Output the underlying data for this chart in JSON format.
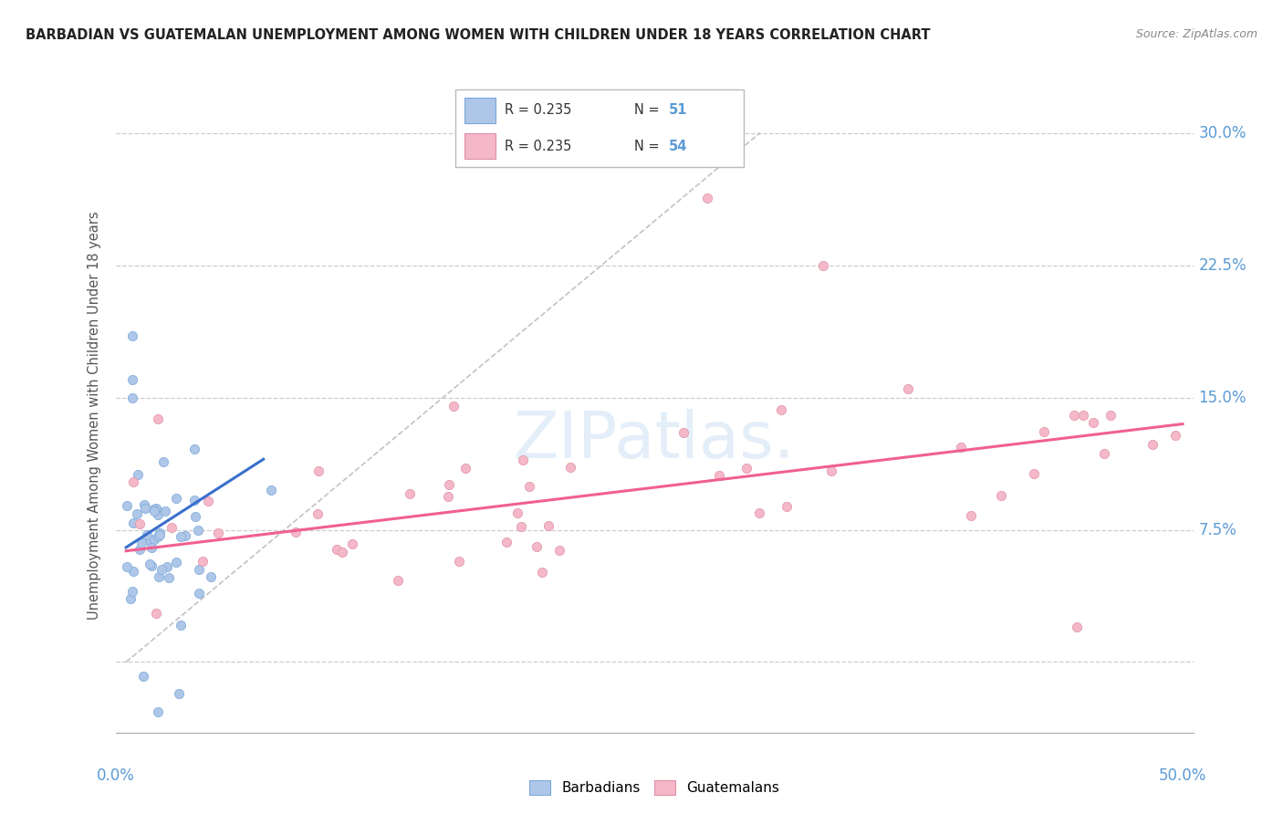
{
  "title": "BARBADIAN VS GUATEMALAN UNEMPLOYMENT AMONG WOMEN WITH CHILDREN UNDER 18 YEARS CORRELATION CHART",
  "source": "Source: ZipAtlas.com",
  "ylabel": "Unemployment Among Women with Children Under 18 years",
  "barbadian_color": "#aec6e8",
  "barbadian_edge": "#7ba8d8",
  "guatemalan_color": "#f4b8c8",
  "guatemalan_edge": "#e090a8",
  "barbadian_trend_color": "#3a6fcc",
  "guatemalan_trend_color": "#f06090",
  "diagonal_color": "#b8b8b8",
  "ytick_vals": [
    0.075,
    0.15,
    0.225,
    0.3
  ],
  "ytick_labels": [
    "7.5%",
    "15.0%",
    "22.5%",
    "30.0%"
  ],
  "xlim": [
    -0.005,
    0.505
  ],
  "ylim": [
    -0.04,
    0.32
  ],
  "axis_label_color": "#5b9bd5",
  "grid_color": "#cccccc",
  "watermark_color": "#cce0f5",
  "barb_trend_x": [
    0.0,
    0.065
  ],
  "barb_trend_y": [
    0.065,
    0.115
  ],
  "guat_trend_x": [
    0.0,
    0.5
  ],
  "guat_trend_y": [
    0.063,
    0.135
  ]
}
